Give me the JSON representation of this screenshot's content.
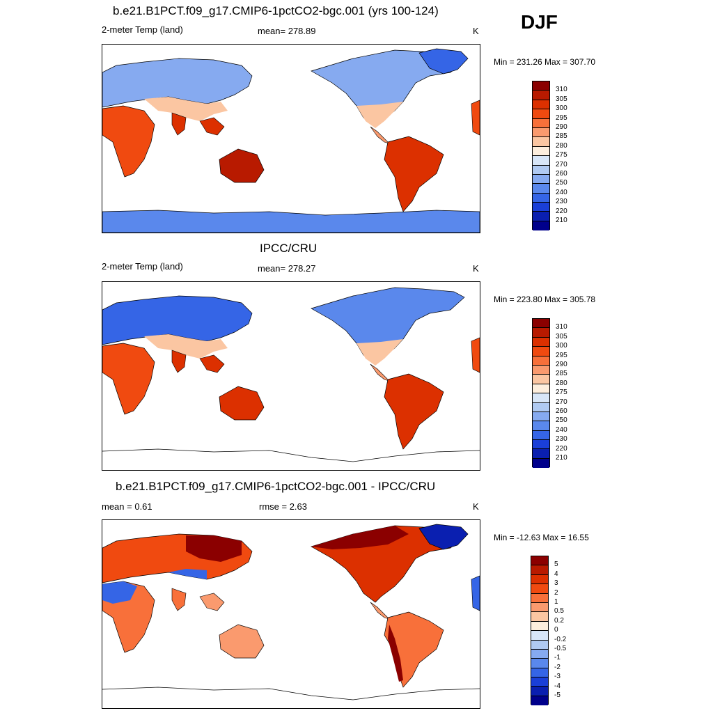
{
  "season": "DJF",
  "panels": [
    {
      "title": "b.e21.B1PCT.f09_g17.CMIP6-1pctCO2-bgc.001 (yrs 100-124)",
      "left_label": "2-meter Temp (land)",
      "center_label": "mean= 278.89",
      "right_label": "K",
      "minmax": "Min = 231.26 Max = 307.70",
      "cbar": "abs"
    },
    {
      "title": "IPCC/CRU",
      "left_label": "2-meter Temp (land)",
      "center_label": "mean= 278.27",
      "right_label": "K",
      "minmax": "Min = 223.80 Max = 305.78",
      "cbar": "abs"
    },
    {
      "title": "b.e21.B1PCT.f09_g17.CMIP6-1pctCO2-bgc.001 - IPCC/CRU",
      "left_label": "mean =   0.61",
      "center_label": "rmse =   2.63",
      "right_label": "K",
      "minmax": "Min = -12.63 Max =  16.55",
      "cbar": "diff"
    }
  ],
  "colorbars": {
    "abs": {
      "labels": [
        "310",
        "305",
        "300",
        "295",
        "290",
        "285",
        "280",
        "275",
        "270",
        "260",
        "250",
        "240",
        "230",
        "220",
        "210"
      ],
      "colors": [
        "#8b0000",
        "#b81a00",
        "#dc3000",
        "#f04a10",
        "#f8703a",
        "#fa9a6e",
        "#fbc6a2",
        "#fdeedd",
        "#d8e6f8",
        "#b0caf2",
        "#86aaf0",
        "#5a88ec",
        "#3565e6",
        "#1a3fd8",
        "#0a1fb0",
        "#00008b"
      ]
    },
    "diff": {
      "labels": [
        "5",
        "4",
        "3",
        "2",
        "1",
        "0.5",
        "0.2",
        "0",
        "-0.2",
        "-0.5",
        "-1",
        "-2",
        "-3",
        "-4",
        "-5"
      ],
      "colors": [
        "#8b0000",
        "#b81a00",
        "#dc3000",
        "#f04a10",
        "#f8703a",
        "#fa9a6e",
        "#fbc6a2",
        "#fdeedd",
        "#d8e6f8",
        "#b0caf2",
        "#86aaf0",
        "#5a88ec",
        "#3565e6",
        "#1a3fd8",
        "#0a1fb0",
        "#00008b"
      ]
    }
  }
}
